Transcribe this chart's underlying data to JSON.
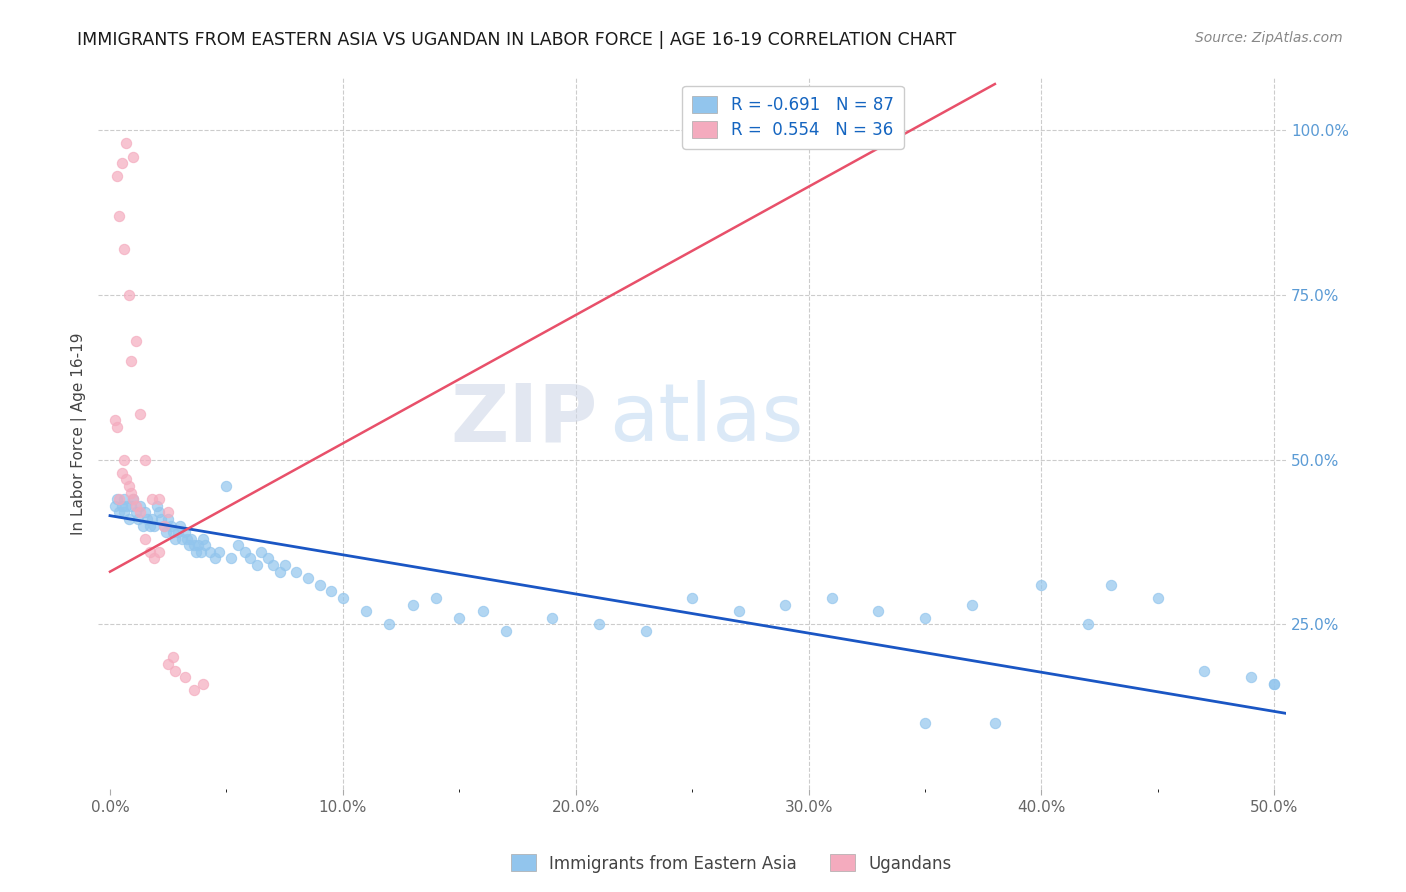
{
  "title": "IMMIGRANTS FROM EASTERN ASIA VS UGANDAN IN LABOR FORCE | AGE 16-19 CORRELATION CHART",
  "source": "Source: ZipAtlas.com",
  "ylabel": "In Labor Force | Age 16-19",
  "x_tick_labels": [
    "0.0%",
    "",
    "",
    "",
    "",
    "",
    "",
    "",
    "",
    "",
    "10.0%",
    "",
    "",
    "",
    "",
    "",
    "",
    "",
    "",
    "",
    "20.0%",
    "",
    "",
    "",
    "",
    "",
    "",
    "",
    "",
    "",
    "30.0%",
    "",
    "",
    "",
    "",
    "",
    "",
    "",
    "",
    "",
    "40.0%",
    "",
    "",
    "",
    "",
    "",
    "",
    "",
    "",
    "",
    "50.0%"
  ],
  "x_tick_values": [
    0.0,
    0.01,
    0.02,
    0.03,
    0.04,
    0.05,
    0.06,
    0.07,
    0.08,
    0.09,
    0.1,
    0.11,
    0.12,
    0.13,
    0.14,
    0.15,
    0.16,
    0.17,
    0.18,
    0.19,
    0.2,
    0.21,
    0.22,
    0.23,
    0.24,
    0.25,
    0.26,
    0.27,
    0.28,
    0.29,
    0.3,
    0.31,
    0.32,
    0.33,
    0.34,
    0.35,
    0.36,
    0.37,
    0.38,
    0.39,
    0.4,
    0.41,
    0.42,
    0.43,
    0.44,
    0.45,
    0.46,
    0.47,
    0.48,
    0.49,
    0.5
  ],
  "x_tick_display": [
    0.0,
    0.1,
    0.2,
    0.3,
    0.4,
    0.5
  ],
  "x_tick_display_labels": [
    "0.0%",
    "10.0%",
    "20.0%",
    "30.0%",
    "40.0%",
    "50.0%"
  ],
  "y_tick_labels": [
    "25.0%",
    "50.0%",
    "75.0%",
    "100.0%"
  ],
  "y_tick_values": [
    0.25,
    0.5,
    0.75,
    1.0
  ],
  "xlim": [
    -0.005,
    0.505
  ],
  "ylim": [
    0.0,
    1.08
  ],
  "blue_color": "#92C5ED",
  "pink_color": "#F4ABBE",
  "blue_line_color": "#1A56C4",
  "pink_line_color": "#E8506A",
  "legend_blue_R": "-0.691",
  "legend_blue_N": "87",
  "legend_pink_R": "0.554",
  "legend_pink_N": "36",
  "legend_label_blue": "Immigrants from Eastern Asia",
  "legend_label_pink": "Ugandans",
  "watermark_zip": "ZIP",
  "watermark_atlas": "atlas",
  "blue_trendline_x": [
    0.0,
    0.505
  ],
  "blue_trendline_y": [
    0.415,
    0.115
  ],
  "pink_trendline_x": [
    0.0,
    0.38
  ],
  "pink_trendline_y": [
    0.33,
    1.07
  ],
  "blue_scatter_x": [
    0.002,
    0.003,
    0.004,
    0.005,
    0.006,
    0.006,
    0.007,
    0.008,
    0.009,
    0.01,
    0.011,
    0.012,
    0.013,
    0.014,
    0.015,
    0.016,
    0.017,
    0.018,
    0.019,
    0.02,
    0.021,
    0.022,
    0.023,
    0.024,
    0.025,
    0.026,
    0.027,
    0.028,
    0.029,
    0.03,
    0.031,
    0.032,
    0.033,
    0.034,
    0.035,
    0.036,
    0.037,
    0.038,
    0.039,
    0.04,
    0.041,
    0.043,
    0.045,
    0.047,
    0.05,
    0.052,
    0.055,
    0.058,
    0.06,
    0.063,
    0.065,
    0.068,
    0.07,
    0.073,
    0.075,
    0.08,
    0.085,
    0.09,
    0.095,
    0.1,
    0.11,
    0.12,
    0.13,
    0.14,
    0.15,
    0.16,
    0.17,
    0.19,
    0.21,
    0.23,
    0.25,
    0.27,
    0.29,
    0.31,
    0.33,
    0.35,
    0.37,
    0.4,
    0.43,
    0.45,
    0.47,
    0.49,
    0.5,
    0.5,
    0.42,
    0.38,
    0.35
  ],
  "blue_scatter_y": [
    0.43,
    0.44,
    0.42,
    0.43,
    0.44,
    0.42,
    0.43,
    0.41,
    0.43,
    0.44,
    0.42,
    0.41,
    0.43,
    0.4,
    0.42,
    0.41,
    0.4,
    0.41,
    0.4,
    0.43,
    0.42,
    0.41,
    0.4,
    0.39,
    0.41,
    0.4,
    0.39,
    0.38,
    0.39,
    0.4,
    0.38,
    0.39,
    0.38,
    0.37,
    0.38,
    0.37,
    0.36,
    0.37,
    0.36,
    0.38,
    0.37,
    0.36,
    0.35,
    0.36,
    0.46,
    0.35,
    0.37,
    0.36,
    0.35,
    0.34,
    0.36,
    0.35,
    0.34,
    0.33,
    0.34,
    0.33,
    0.32,
    0.31,
    0.3,
    0.29,
    0.27,
    0.25,
    0.28,
    0.29,
    0.26,
    0.27,
    0.24,
    0.26,
    0.25,
    0.24,
    0.29,
    0.27,
    0.28,
    0.29,
    0.27,
    0.26,
    0.28,
    0.31,
    0.31,
    0.29,
    0.18,
    0.17,
    0.16,
    0.16,
    0.25,
    0.1,
    0.1
  ],
  "pink_scatter_x": [
    0.002,
    0.003,
    0.004,
    0.005,
    0.006,
    0.007,
    0.008,
    0.009,
    0.01,
    0.011,
    0.013,
    0.015,
    0.017,
    0.019,
    0.021,
    0.023,
    0.025,
    0.027,
    0.003,
    0.004,
    0.005,
    0.006,
    0.007,
    0.008,
    0.009,
    0.01,
    0.011,
    0.013,
    0.015,
    0.018,
    0.021,
    0.025,
    0.028,
    0.032,
    0.036,
    0.04
  ],
  "pink_scatter_y": [
    0.56,
    0.55,
    0.44,
    0.48,
    0.5,
    0.47,
    0.46,
    0.45,
    0.44,
    0.43,
    0.42,
    0.38,
    0.36,
    0.35,
    0.36,
    0.4,
    0.19,
    0.2,
    0.93,
    0.87,
    0.95,
    0.82,
    0.98,
    0.75,
    0.65,
    0.96,
    0.68,
    0.57,
    0.5,
    0.44,
    0.44,
    0.42,
    0.18,
    0.17,
    0.15,
    0.16
  ]
}
